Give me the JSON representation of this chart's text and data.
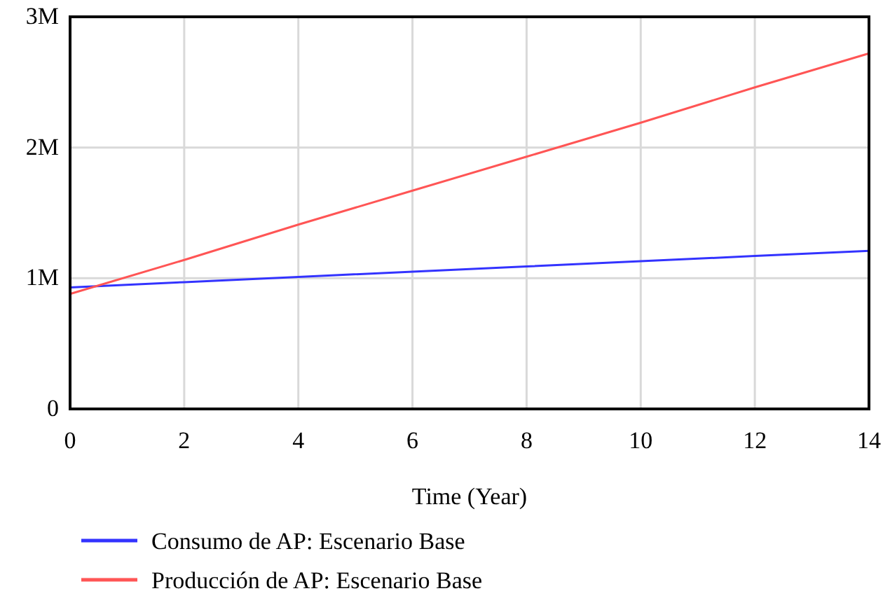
{
  "chart_data": {
    "type": "line",
    "xlabel": "Time (Year)",
    "x": [
      0,
      2,
      4,
      6,
      8,
      10,
      12,
      14
    ],
    "series": [
      {
        "name": "Consumo de AP: Escenario Base",
        "color": "#3333ff",
        "values": [
          930000,
          970000,
          1010000,
          1050000,
          1090000,
          1130000,
          1170000,
          1210000
        ]
      },
      {
        "name": "Producción de AP: Escenario Base",
        "color": "#ff5555",
        "values": [
          880000,
          1140000,
          1410000,
          1670000,
          1930000,
          2190000,
          2460000,
          2720000
        ]
      }
    ],
    "xlim": [
      0,
      14
    ],
    "xticks": [
      0,
      2,
      4,
      6,
      8,
      10,
      12,
      14
    ],
    "ylim": [
      0,
      3000000
    ],
    "yticks": [
      0,
      {
        "value": 1000000,
        "label": "1M"
      },
      {
        "value": 2000000,
        "label": "2M"
      },
      {
        "value": 3000000,
        "label": "3M"
      }
    ],
    "grid": true,
    "legend": "bottom",
    "marker": "none",
    "line_style": "solid"
  }
}
